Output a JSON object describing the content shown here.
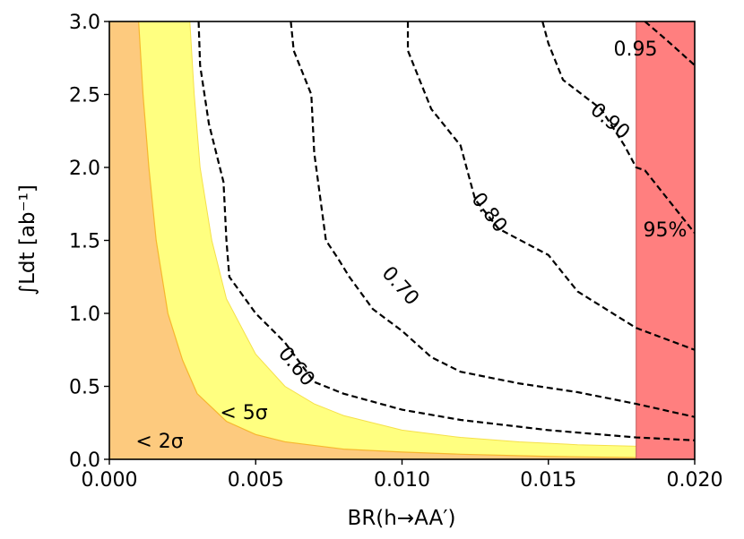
{
  "chart_data": {
    "type": "area",
    "xlabel": "BR(h→AA′)",
    "ylabel": "∫Ldt [ab⁻¹]",
    "xlim": [
      0.0,
      0.02
    ],
    "ylim": [
      0.0,
      3.0
    ],
    "xticks": [
      "0.000",
      "0.005",
      "0.010",
      "0.015",
      "0.020"
    ],
    "xtick_values": [
      0.0,
      0.005,
      0.01,
      0.015,
      0.02
    ],
    "yticks": [
      "0.0",
      "0.5",
      "1.0",
      "1.5",
      "2.0",
      "2.5",
      "3.0"
    ],
    "ytick_values": [
      0.0,
      0.5,
      1.0,
      1.5,
      2.0,
      2.5,
      3.0
    ],
    "grid": false,
    "regions": [
      {
        "label": "< 5σ",
        "color": "#ffff80",
        "boundary_x": [
          0.00275,
          0.0029,
          0.0031,
          0.0035,
          0.004,
          0.005,
          0.006,
          0.007,
          0.008,
          0.01,
          0.012,
          0.014,
          0.016,
          0.018,
          0.02
        ],
        "boundary_y": [
          3.0,
          2.5,
          2.0,
          1.5,
          1.1,
          0.72,
          0.5,
          0.38,
          0.3,
          0.2,
          0.15,
          0.12,
          0.1,
          0.09,
          0.08
        ]
      },
      {
        "label": "< 2σ",
        "color": "#fdca7e",
        "boundary_x": [
          0.001,
          0.00115,
          0.00135,
          0.0016,
          0.002,
          0.0025,
          0.003,
          0.004,
          0.005,
          0.006,
          0.008,
          0.01,
          0.012,
          0.015,
          0.018,
          0.02
        ],
        "boundary_y": [
          3.0,
          2.5,
          2.0,
          1.5,
          1.0,
          0.68,
          0.45,
          0.26,
          0.17,
          0.12,
          0.07,
          0.05,
          0.035,
          0.02,
          0.012,
          0.008
        ]
      },
      {
        "label": "95%",
        "color": "#ff7f7f",
        "x_range": [
          0.018,
          0.02
        ]
      }
    ],
    "series": [
      {
        "name": "0.60",
        "x": [
          0.00305,
          0.0031,
          0.0034,
          0.0039,
          0.004,
          0.0041,
          0.005,
          0.006,
          0.007,
          0.008,
          0.01,
          0.012,
          0.015,
          0.018,
          0.02
        ],
        "y": [
          3.0,
          2.7,
          2.3,
          1.9,
          1.5,
          1.25,
          1.0,
          0.8,
          0.53,
          0.45,
          0.34,
          0.27,
          0.2,
          0.15,
          0.13
        ]
      },
      {
        "name": "0.70",
        "x": [
          0.0062,
          0.0063,
          0.0069,
          0.007,
          0.0072,
          0.0074,
          0.0078,
          0.0082,
          0.009,
          0.01,
          0.011,
          0.012,
          0.014,
          0.016,
          0.018,
          0.02
        ],
        "y": [
          3.0,
          2.8,
          2.5,
          2.1,
          1.8,
          1.5,
          1.38,
          1.25,
          1.03,
          0.88,
          0.7,
          0.6,
          0.52,
          0.46,
          0.38,
          0.29
        ]
      },
      {
        "name": "0.80",
        "x": [
          0.0102,
          0.0102,
          0.011,
          0.012,
          0.0125,
          0.0133,
          0.015,
          0.016,
          0.018,
          0.02
        ],
        "y": [
          3.0,
          2.8,
          2.4,
          2.15,
          1.78,
          1.58,
          1.4,
          1.15,
          0.9,
          0.75
        ],
        "label_as_data": "0.80"
      },
      {
        "name": "0.90",
        "x": [
          0.0148,
          0.015,
          0.0155,
          0.0168,
          0.0176,
          0.018,
          0.0183,
          0.02
        ],
        "y": [
          3.0,
          2.85,
          2.6,
          2.4,
          2.15,
          2.0,
          1.98,
          1.55
        ]
      },
      {
        "name": "0.95",
        "x": [
          0.0183,
          0.019,
          0.02
        ],
        "y": [
          3.0,
          2.88,
          2.7
        ]
      }
    ],
    "contour_labels": [
      "0.60",
      "0.70",
      "0.80",
      "0.90",
      "0.95"
    ],
    "region_labels": [
      "< 2σ",
      "< 5σ",
      "95%"
    ]
  }
}
